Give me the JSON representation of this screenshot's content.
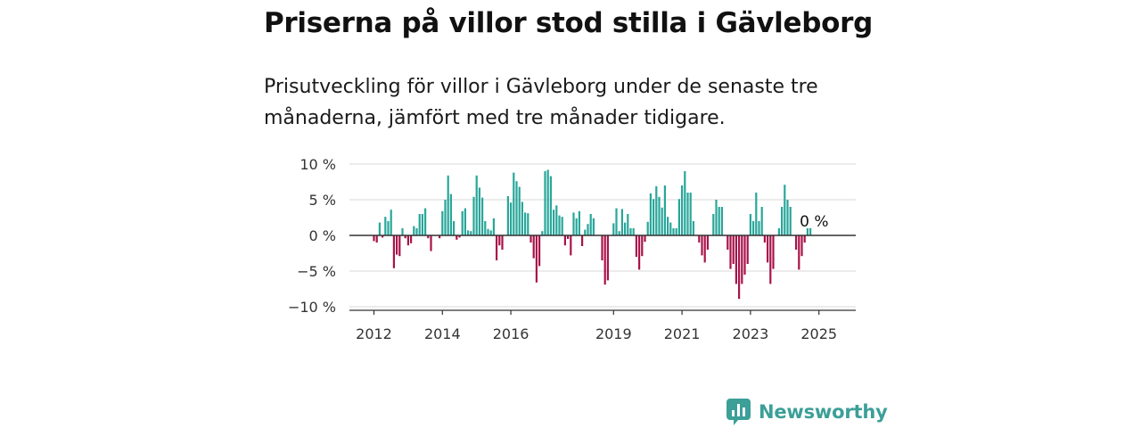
{
  "page": {
    "title": "Priserna på villor stod stilla i Gävleborg",
    "subtitle": "Prisutveckling för villor i Gävleborg under de senaste tre månaderna, jämfört med tre månader tidigare."
  },
  "brand": {
    "name": "Newsworthy",
    "icon": "newsworthy-logo-icon",
    "color": "#3c9f98"
  },
  "chart_data": {
    "type": "bar",
    "title": "",
    "xlabel": "",
    "ylabel": "",
    "ylim": [
      -10,
      10
    ],
    "y_ticks": [
      {
        "value": 10,
        "label": "10 %"
      },
      {
        "value": 5,
        "label": "5 %"
      },
      {
        "value": 0,
        "label": "0 %"
      },
      {
        "value": -5,
        "label": "−5 %"
      },
      {
        "value": -10,
        "label": "−10 %"
      }
    ],
    "x_ticks": [
      {
        "value": 2012,
        "label": "2012"
      },
      {
        "value": 2014,
        "label": "2014"
      },
      {
        "value": 2016,
        "label": "2016"
      },
      {
        "value": 2019,
        "label": "2019"
      },
      {
        "value": 2021,
        "label": "2021"
      },
      {
        "value": 2023,
        "label": "2023"
      },
      {
        "value": 2025,
        "label": "2025"
      }
    ],
    "grid": true,
    "colors": {
      "positive": "#28a69a",
      "negative": "#a8134a",
      "grid": "#d8d8d8",
      "zero_line": "#333333",
      "axis": "#333333"
    },
    "end_label": "0 %",
    "frequency": "monthly",
    "x_start": "2012-01",
    "values": [
      -0.8,
      -1.0,
      1.8,
      -0.3,
      2.6,
      2.0,
      3.6,
      -4.6,
      -2.7,
      -2.9,
      1.0,
      -0.4,
      -1.4,
      -1.1,
      1.3,
      1.0,
      3.0,
      3.0,
      3.8,
      -0.4,
      -2.2,
      0.0,
      0.0,
      -0.4,
      3.4,
      5.0,
      8.4,
      5.8,
      2.0,
      -0.6,
      -0.3,
      3.4,
      3.8,
      0.7,
      0.6,
      5.4,
      8.4,
      6.7,
      5.3,
      2.0,
      0.9,
      0.7,
      2.4,
      -3.5,
      -1.4,
      -2.0,
      0.0,
      5.5,
      4.6,
      8.8,
      7.6,
      6.8,
      4.7,
      3.2,
      3.1,
      -1.0,
      -3.2,
      -6.6,
      -4.3,
      0.6,
      9.0,
      9.2,
      8.3,
      3.6,
      4.2,
      2.8,
      2.6,
      -1.4,
      -0.5,
      -2.8,
      3.2,
      2.4,
      3.4,
      -1.5,
      0.8,
      1.6,
      3.0,
      2.4,
      0.0,
      0.0,
      -3.5,
      -6.9,
      -6.3,
      0.0,
      1.7,
      3.8,
      0.6,
      3.7,
      1.8,
      3.0,
      1.0,
      1.0,
      -3.0,
      -4.8,
      -2.9,
      -0.9,
      1.9,
      5.9,
      5.1,
      6.9,
      5.4,
      3.9,
      7.0,
      2.6,
      1.8,
      1.0,
      1.0,
      5.1,
      7.0,
      9.0,
      6.0,
      6.0,
      2.0,
      0.0,
      -1.0,
      -2.8,
      -3.8,
      -2.0,
      0.0,
      3.0,
      5.0,
      4.0,
      4.0,
      0.0,
      -2.0,
      -4.7,
      -4.0,
      -6.8,
      -8.9,
      -6.8,
      -5.5,
      -4.0,
      3.0,
      2.0,
      6.0,
      2.0,
      4.0,
      -1.0,
      -3.8,
      -6.8,
      -4.7,
      0.0,
      1.0,
      4.0,
      7.1,
      5.0,
      4.0,
      0.0,
      -2.0,
      -4.8,
      -2.9,
      -1.0,
      1.0,
      1.0
    ]
  }
}
